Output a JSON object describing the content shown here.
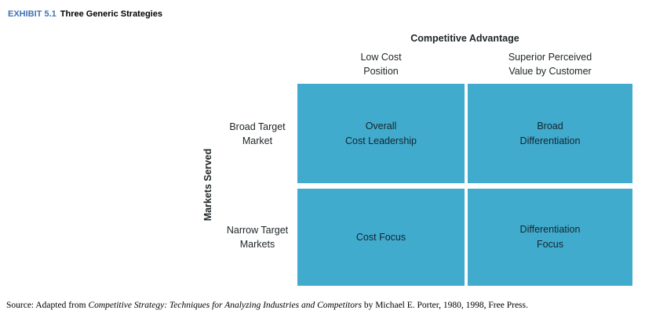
{
  "header": {
    "exhibit_label": "EXHIBIT 5.1",
    "exhibit_title": "Three Generic Strategies"
  },
  "colors": {
    "cell_blue": "#41abce",
    "exhibit_label_blue": "#3e74b5"
  },
  "matrix": {
    "column_axis_title": "Competitive Advantage",
    "row_axis_title": "Markets Served",
    "column_headers": [
      "Low Cost\nPosition",
      "Superior Perceived\nValue by Customer"
    ],
    "row_headers": [
      "Broad Target\nMarket",
      "Narrow Target\nMarkets"
    ],
    "cells": [
      [
        "Overall\nCost Leadership",
        "Broad\nDifferentiation"
      ],
      [
        "Cost Focus",
        "Differentiation\nFocus"
      ]
    ]
  },
  "source": {
    "prefix": "Source: Adapted from ",
    "work_title": "Competitive Strategy: Techniques for Analyzing Industries and Competitors",
    "suffix": " by Michael E. Porter, 1980, 1998, Free Press."
  }
}
